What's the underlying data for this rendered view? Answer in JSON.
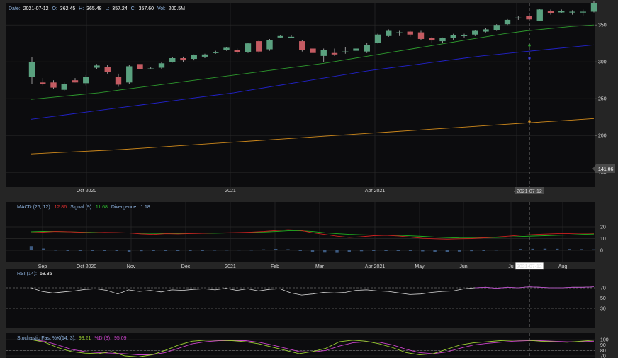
{
  "header": {
    "date_label": "Date:",
    "date_value": "2021-07-12",
    "o_label": "O:",
    "o_value": "362.45",
    "h_label": "H:",
    "h_value": "365.48",
    "l_label": "L:",
    "l_value": "357.24",
    "c_label": "C:",
    "c_value": "357.60",
    "vol_label": "Vol:",
    "vol_value": "200.5M"
  },
  "price_tag": "141.06",
  "cursor_date": "2021-07-12",
  "macd_legend": {
    "macd": "MACD (26, 12):",
    "macd_value": "12.86",
    "signal": "Signal (9):",
    "signal_value": "11.68",
    "div": "Divergence:",
    "div_value": "1.18"
  },
  "rsi_legend": {
    "label": "RSI (14):",
    "value": "68.35"
  },
  "stoch_legend": {
    "label": "Stochastic Fast %K(14, 3):",
    "k_value": "93.21",
    "d_label": "%D (3):",
    "d_value": "95.09"
  },
  "colors": {
    "bg": "#0c0c0e",
    "grid": "#2a2a2a",
    "up": "#5aa17f",
    "down": "#c45b62",
    "ma_green": "#2e9a2e",
    "ma_blue": "#2222cc",
    "ma_orange": "#d08a1c",
    "macd": "#cc2020",
    "signal": "#20b020",
    "rsi": "#d8d8d8",
    "stoch_k": "#9acd32",
    "stoch_d": "#cc44cc",
    "hist": "#3d5a80"
  },
  "chart_data": [
    {
      "type": "candlestick",
      "yticks": [
        150,
        200,
        250,
        300,
        350
      ],
      "ylim": [
        130,
        380
      ],
      "xticks": [
        "Oct 2020",
        "2021",
        "Apr 2021",
        "Ju"
      ],
      "candles": [
        {
          "o": 280,
          "h": 306,
          "l": 270,
          "c": 300
        },
        {
          "o": 272,
          "h": 278,
          "l": 268,
          "c": 270
        },
        {
          "o": 272,
          "h": 275,
          "l": 263,
          "c": 265
        },
        {
          "o": 262,
          "h": 272,
          "l": 260,
          "c": 270
        },
        {
          "o": 275,
          "h": 278,
          "l": 272,
          "c": 272
        },
        {
          "o": 271,
          "h": 282,
          "l": 268,
          "c": 280
        },
        {
          "o": 292,
          "h": 297,
          "l": 290,
          "c": 295
        },
        {
          "o": 293,
          "h": 296,
          "l": 284,
          "c": 286
        },
        {
          "o": 280,
          "h": 284,
          "l": 266,
          "c": 269
        },
        {
          "o": 272,
          "h": 296,
          "l": 270,
          "c": 294
        },
        {
          "o": 297,
          "h": 299,
          "l": 288,
          "c": 290
        },
        {
          "o": 291,
          "h": 293,
          "l": 290,
          "c": 291
        },
        {
          "o": 292,
          "h": 300,
          "l": 290,
          "c": 298
        },
        {
          "o": 300,
          "h": 306,
          "l": 299,
          "c": 305
        },
        {
          "o": 305,
          "h": 307,
          "l": 300,
          "c": 302
        },
        {
          "o": 304,
          "h": 310,
          "l": 302,
          "c": 309
        },
        {
          "o": 307,
          "h": 311,
          "l": 305,
          "c": 310
        },
        {
          "o": 312,
          "h": 315,
          "l": 311,
          "c": 313
        },
        {
          "o": 316,
          "h": 320,
          "l": 315,
          "c": 319
        },
        {
          "o": 316,
          "h": 318,
          "l": 311,
          "c": 313
        },
        {
          "o": 313,
          "h": 326,
          "l": 312,
          "c": 325
        },
        {
          "o": 328,
          "h": 330,
          "l": 312,
          "c": 314
        },
        {
          "o": 317,
          "h": 331,
          "l": 315,
          "c": 330
        },
        {
          "o": 333,
          "h": 336,
          "l": 332,
          "c": 335
        },
        {
          "o": 334,
          "h": 336,
          "l": 333,
          "c": 334
        },
        {
          "o": 328,
          "h": 330,
          "l": 314,
          "c": 316
        },
        {
          "o": 318,
          "h": 320,
          "l": 302,
          "c": 312
        },
        {
          "o": 308,
          "h": 318,
          "l": 300,
          "c": 316
        },
        {
          "o": 312,
          "h": 318,
          "l": 308,
          "c": 310
        },
        {
          "o": 313,
          "h": 320,
          "l": 311,
          "c": 314
        },
        {
          "o": 315,
          "h": 323,
          "l": 313,
          "c": 318
        },
        {
          "o": 314,
          "h": 326,
          "l": 312,
          "c": 323
        },
        {
          "o": 326,
          "h": 338,
          "l": 325,
          "c": 337
        },
        {
          "o": 335,
          "h": 344,
          "l": 334,
          "c": 342
        },
        {
          "o": 339,
          "h": 342,
          "l": 335,
          "c": 340
        },
        {
          "o": 341,
          "h": 342,
          "l": 334,
          "c": 337
        },
        {
          "o": 340,
          "h": 342,
          "l": 330,
          "c": 331
        },
        {
          "o": 332,
          "h": 334,
          "l": 325,
          "c": 329
        },
        {
          "o": 328,
          "h": 333,
          "l": 326,
          "c": 332
        },
        {
          "o": 332,
          "h": 338,
          "l": 330,
          "c": 336
        },
        {
          "o": 335,
          "h": 338,
          "l": 333,
          "c": 336
        },
        {
          "o": 337,
          "h": 343,
          "l": 335,
          "c": 342
        },
        {
          "o": 341,
          "h": 346,
          "l": 340,
          "c": 344
        },
        {
          "o": 343,
          "h": 351,
          "l": 342,
          "c": 350
        },
        {
          "o": 351,
          "h": 358,
          "l": 350,
          "c": 357
        },
        {
          "o": 359,
          "h": 362,
          "l": 357,
          "c": 360
        },
        {
          "o": 362.45,
          "h": 365.48,
          "l": 357.24,
          "c": 357.6
        },
        {
          "o": 356,
          "h": 372,
          "l": 355,
          "c": 371
        },
        {
          "o": 369,
          "h": 371,
          "l": 364,
          "c": 366
        },
        {
          "o": 367,
          "h": 371,
          "l": 366,
          "c": 369
        },
        {
          "o": 367,
          "h": 370,
          "l": 364,
          "c": 368
        },
        {
          "o": 367,
          "h": 371,
          "l": 363,
          "c": 368
        },
        {
          "o": 368,
          "h": 382,
          "l": 367,
          "c": 380
        }
      ],
      "ma_green": [
        249,
        252,
        255,
        258,
        262,
        266,
        270,
        274,
        278,
        282,
        286,
        290,
        294,
        298,
        303,
        308,
        313,
        318,
        323,
        328,
        333,
        338,
        342,
        345,
        348,
        350
      ],
      "ma_blue": [
        222,
        226,
        230,
        234,
        238,
        242,
        246,
        250,
        254,
        258,
        263,
        268,
        273,
        278,
        283,
        288,
        292,
        296,
        300,
        304,
        308,
        311,
        314,
        317,
        320,
        323
      ],
      "ma_orange": [
        175,
        176.5,
        178,
        179.5,
        181,
        183,
        185,
        187,
        189,
        191,
        193,
        195,
        197,
        199,
        201,
        203,
        205,
        207,
        209,
        211,
        213,
        215,
        217,
        219,
        221,
        223
      ],
      "hline": 141.06
    },
    {
      "type": "line",
      "name": "MACD",
      "yticks": [
        0,
        10,
        20
      ],
      "xticks": [
        "Sep",
        "Oct 2020",
        "Nov",
        "Dec",
        "2021",
        "Feb",
        "Mar",
        "Apr 2021",
        "May",
        "Jun",
        "Ju",
        "Aug"
      ],
      "macd": [
        15,
        15.5,
        16,
        15.8,
        15.4,
        15,
        15.3,
        15.1,
        14.8,
        14,
        13.5,
        14.2,
        14,
        14.3,
        14.5,
        14.8,
        15,
        15.2,
        15.5,
        16,
        16.8,
        17.5,
        17,
        15,
        13.5,
        12,
        11,
        11.5,
        12.4,
        12.8,
        12.2,
        11.2,
        10.2,
        9.8,
        9.5,
        9.8,
        10,
        10.6,
        11.2,
        12,
        12.9,
        13.4,
        13.8,
        14.2,
        14.3,
        14.6,
        14.5
      ],
      "signal": [
        15.8,
        16.1,
        16,
        15.8,
        15.5,
        15.3,
        15.1,
        15,
        14.8,
        14.6,
        14.4,
        14.4,
        14.4,
        14.4,
        14.5,
        14.6,
        14.8,
        15,
        15.3,
        15.6,
        16,
        16.6,
        16.6,
        16,
        15,
        14.2,
        13.6,
        13.2,
        13,
        13,
        12.8,
        12.3,
        11.8,
        11.2,
        10.8,
        10.5,
        10.4,
        10.6,
        10.9,
        11.2,
        11.7,
        12.1,
        12.4,
        12.8,
        13.1,
        13.5,
        13.8
      ],
      "divergence": [
        3.5,
        1.5,
        0.3,
        -0.5,
        -0.4,
        -0.5,
        -0.5,
        -0.6,
        -1.2,
        -0.7,
        -0.6,
        -0.5,
        -0.4,
        -0.3,
        0,
        0.3,
        0.4,
        0.5,
        0.4,
        0.8,
        1.2,
        0.9,
        -0.6,
        -1.5,
        -2,
        -2.2,
        -1.6,
        -0.8,
        -0.4,
        -0.2,
        0,
        -0.3,
        -0.9,
        -1.4,
        -1.3,
        -1.1,
        -0.7,
        -0.3,
        0.4,
        0.6,
        1.1,
        1.3,
        1.4,
        1.3,
        1.1,
        1,
        0.8
      ]
    },
    {
      "type": "line",
      "name": "RSI",
      "yticks": [
        30,
        50,
        70
      ],
      "rsi": [
        70,
        63,
        60,
        62,
        64,
        67,
        68,
        65,
        58,
        66,
        63,
        65,
        62,
        66,
        65,
        67,
        68,
        66,
        69,
        65,
        68,
        64,
        67,
        68,
        60,
        56,
        58,
        61,
        60,
        61,
        65,
        66,
        64,
        63,
        60,
        57,
        58,
        61,
        63,
        64,
        68,
        70,
        71,
        69,
        71,
        70,
        72,
        71,
        70,
        70,
        71,
        71,
        72
      ],
      "lines": [
        30,
        50,
        70
      ]
    },
    {
      "type": "line",
      "name": "Stochastic",
      "yticks": [
        70,
        80,
        90,
        100
      ],
      "k": [
        100,
        95,
        85,
        78,
        75,
        74,
        78,
        70,
        68,
        72,
        80,
        90,
        97,
        99,
        99,
        98,
        96,
        92,
        86,
        80,
        74,
        78,
        84,
        96,
        99,
        97,
        92,
        85,
        76,
        72,
        74,
        82,
        90,
        94,
        96,
        98,
        99,
        99,
        97,
        96,
        95,
        97,
        99
      ],
      "d": [
        100,
        97,
        90,
        82,
        78,
        76,
        75,
        74,
        72,
        72,
        76,
        84,
        92,
        96,
        98,
        98,
        98,
        95,
        90,
        84,
        78,
        77,
        80,
        88,
        94,
        96,
        95,
        90,
        82,
        76,
        74,
        77,
        84,
        90,
        93,
        95,
        97,
        98,
        98,
        97,
        96,
        96,
        97
      ]
    }
  ]
}
